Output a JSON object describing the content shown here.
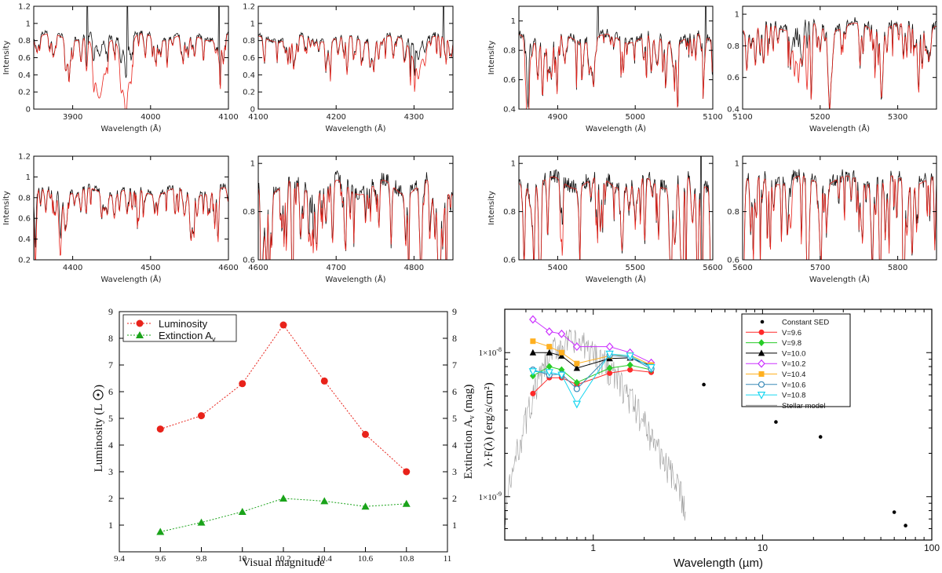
{
  "colors": {
    "observed": "#111111",
    "model": "#e8221a",
    "luminosity": "#e8221a",
    "extinction": "#1aa31a",
    "constant_sed": "#000000",
    "stellar_model": "#9a9a9a"
  },
  "chart_data": [
    {
      "type": "line",
      "xlabel": "Wavelength (Å)",
      "ylabel": "Intensity",
      "xlim": [
        3850,
        4100
      ],
      "ylim": [
        0,
        1.2
      ],
      "xticks": [
        "3900",
        "4000",
        "4100"
      ],
      "yticks": [
        "0",
        "0.2",
        "0.4",
        "0.6",
        "0.8",
        "1",
        "1.2"
      ],
      "series": [
        {
          "name": "",
          "kind": "observed"
        },
        {
          "name": "",
          "kind": "model"
        }
      ]
    },
    {
      "type": "line",
      "xlabel": "Wavelength (Å)",
      "ylabel": "",
      "xlim": [
        4100,
        4350
      ],
      "ylim": [
        0,
        1.2
      ],
      "xticks": [
        "4100",
        "4200",
        "4300"
      ],
      "yticks": [
        "0",
        "0.2",
        "0.4",
        "0.6",
        "0.8",
        "1",
        "1.2"
      ],
      "series": [
        {
          "name": "",
          "kind": "observed"
        },
        {
          "name": "",
          "kind": "model"
        }
      ]
    },
    {
      "type": "line",
      "xlabel": "Wavelength (Å)",
      "ylabel": "Intensity",
      "xlim": [
        4850,
        5100
      ],
      "ylim": [
        0.4,
        1.1
      ],
      "xticks": [
        "4900",
        "5000",
        "5100"
      ],
      "yticks": [
        "0.4",
        "0.6",
        "0.8",
        "1"
      ],
      "series": [
        {
          "name": "",
          "kind": "observed"
        },
        {
          "name": "",
          "kind": "model"
        }
      ]
    },
    {
      "type": "line",
      "xlabel": "Wavelength (Å)",
      "ylabel": "",
      "xlim": [
        5100,
        5350
      ],
      "ylim": [
        0.4,
        1.05
      ],
      "xticks": [
        "5100",
        "5200",
        "5300"
      ],
      "yticks": [
        "0.4",
        "0.6",
        "0.8",
        "1"
      ],
      "series": [
        {
          "name": "",
          "kind": "observed"
        },
        {
          "name": "",
          "kind": "model"
        }
      ]
    },
    {
      "type": "line",
      "xlabel": "Wavelength (Å)",
      "ylabel": "Intensity",
      "xlim": [
        4350,
        4600
      ],
      "ylim": [
        0.2,
        1.2
      ],
      "xticks": [
        "4400",
        "4500",
        "4600"
      ],
      "yticks": [
        "0.2",
        "0.4",
        "0.6",
        "0.8",
        "1",
        "1.2"
      ],
      "series": [
        {
          "name": "",
          "kind": "observed"
        },
        {
          "name": "",
          "kind": "model"
        }
      ]
    },
    {
      "type": "line",
      "xlabel": "Wavelength (Å)",
      "ylabel": "",
      "xlim": [
        4600,
        4850
      ],
      "ylim": [
        0.6,
        1.03
      ],
      "xticks": [
        "4600",
        "4700",
        "4800"
      ],
      "yticks": [
        "0.6",
        "0.8",
        "1"
      ],
      "series": [
        {
          "name": "",
          "kind": "observed"
        },
        {
          "name": "",
          "kind": "model"
        }
      ]
    },
    {
      "type": "line",
      "xlabel": "Wavelength (Å)",
      "ylabel": "Intensity",
      "xlim": [
        5350,
        5600
      ],
      "ylim": [
        0.6,
        1.03
      ],
      "xticks": [
        "5400",
        "5500",
        "5600"
      ],
      "yticks": [
        "0.6",
        "0.8",
        "1"
      ],
      "series": [
        {
          "name": "",
          "kind": "observed"
        },
        {
          "name": "",
          "kind": "model"
        }
      ]
    },
    {
      "type": "line",
      "xlabel": "Wavelength (Å)",
      "ylabel": "",
      "xlim": [
        5600,
        5850
      ],
      "ylim": [
        0.6,
        1.03
      ],
      "xticks": [
        "5600",
        "5700",
        "5800"
      ],
      "yticks": [
        "0.6",
        "0.8",
        "1"
      ],
      "series": [
        {
          "name": "",
          "kind": "observed"
        },
        {
          "name": "",
          "kind": "model"
        }
      ]
    },
    {
      "type": "line",
      "xlabel": "Visual magnitude",
      "ylabel": "Luminosity (L",
      "ylabel_right": "Extinction A",
      "xlim": [
        9.4,
        11
      ],
      "ylim": [
        0,
        9
      ],
      "y2lim": [
        0,
        9
      ],
      "xticks": [
        "9.4",
        "9.6",
        "9.8",
        "10",
        "10.2",
        "10.4",
        "10.6",
        "10.8",
        "11"
      ],
      "yticks": [
        "1",
        "2",
        "3",
        "4",
        "5",
        "6",
        "7",
        "8",
        "9"
      ],
      "legend": "top-left",
      "series": [
        {
          "name": "Luminosity",
          "x": [
            9.6,
            9.8,
            10.0,
            10.2,
            10.4,
            10.6,
            10.8
          ],
          "values": [
            4.6,
            5.1,
            6.3,
            8.5,
            6.4,
            4.4,
            3.0
          ]
        },
        {
          "name": "Extinction A",
          "sub": "v",
          "x": [
            9.6,
            9.8,
            10.0,
            10.2,
            10.4,
            10.6,
            10.8
          ],
          "values": [
            0.75,
            1.1,
            1.5,
            2.0,
            1.9,
            1.7,
            1.8
          ]
        }
      ]
    },
    {
      "type": "scatter",
      "xlabel": "Wavelength (µm)",
      "ylabel": "λ·F(λ) (erg/s/cm²)",
      "xscale": "log",
      "yscale": "log",
      "xlim": [
        0.3,
        100
      ],
      "ylim": [
        5e-10,
        2e-08
      ],
      "xticks": [
        "1",
        "10",
        "100"
      ],
      "yticks": [
        "1×10",
        "1×10"
      ],
      "ytick_exps": [
        "-8",
        "-9"
      ],
      "legend": "top-right",
      "constant_sed": {
        "name": "Constant SED",
        "x": [
          4.5,
          12,
          22,
          60,
          70
        ],
        "values": [
          6e-09,
          3.3e-09,
          2.6e-09,
          7.8e-10,
          6.3e-10
        ]
      },
      "series": [
        {
          "name": "V=9.6",
          "color": "#ff2a2a",
          "marker": "circle",
          "x": [
            0.44,
            0.55,
            0.65,
            0.8,
            1.25,
            1.65,
            2.2
          ],
          "values": [
            5.2e-09,
            6.7e-09,
            6.7e-09,
            6e-09,
            7.2e-09,
            7.6e-09,
            7.3e-09
          ]
        },
        {
          "name": "V=9.8",
          "color": "#27cc27",
          "marker": "diamond",
          "x": [
            0.44,
            0.55,
            0.65,
            0.8,
            1.25,
            1.65,
            2.2
          ],
          "values": [
            6.9e-09,
            8e-09,
            7.6e-09,
            6.2e-09,
            7.8e-09,
            8.2e-09,
            7.6e-09
          ]
        },
        {
          "name": "V=10.0",
          "color": "#000000",
          "marker": "triangle",
          "x": [
            0.44,
            0.55,
            0.65,
            0.8,
            1.25,
            1.65,
            2.2
          ],
          "values": [
            1e-08,
            1e-08,
            9.5e-09,
            7.8e-09,
            9.1e-09,
            9.2e-09,
            8.1e-09
          ]
        },
        {
          "name": "V=10.2",
          "color": "#cc33ff",
          "marker": "diamond-open",
          "x": [
            0.44,
            0.55,
            0.65,
            0.8,
            1.25,
            1.65,
            2.2
          ],
          "values": [
            1.7e-08,
            1.4e-08,
            1.35e-08,
            1.1e-08,
            1.1e-08,
            1e-08,
            8.5e-09
          ]
        },
        {
          "name": "V=10.4",
          "color": "#ffb020",
          "marker": "square",
          "x": [
            0.44,
            0.55,
            0.65,
            0.8,
            1.25,
            1.65,
            2.2
          ],
          "values": [
            1.2e-08,
            1.1e-08,
            1e-08,
            8.4e-09,
            9.5e-09,
            9.6e-09,
            8.2e-09
          ]
        },
        {
          "name": "V=10.6",
          "color": "#3a8ab8",
          "marker": "circle-open",
          "x": [
            0.44,
            0.55,
            0.65,
            0.8,
            1.25,
            1.65,
            2.2
          ],
          "values": [
            7.6e-09,
            7e-09,
            7.1e-09,
            5.6e-09,
            9.6e-09,
            9.3e-09,
            7.7e-09
          ]
        },
        {
          "name": "V=10.8",
          "color": "#19d6f0",
          "marker": "triangle-down-open",
          "x": [
            0.44,
            0.55,
            0.65,
            0.8,
            1.25,
            1.65,
            2.2
          ],
          "values": [
            7.4e-09,
            7.3e-09,
            7e-09,
            4.4e-09,
            9.8e-09,
            9.5e-09,
            7.9e-09
          ]
        }
      ],
      "stellar_model_label": "Stellar model"
    }
  ]
}
